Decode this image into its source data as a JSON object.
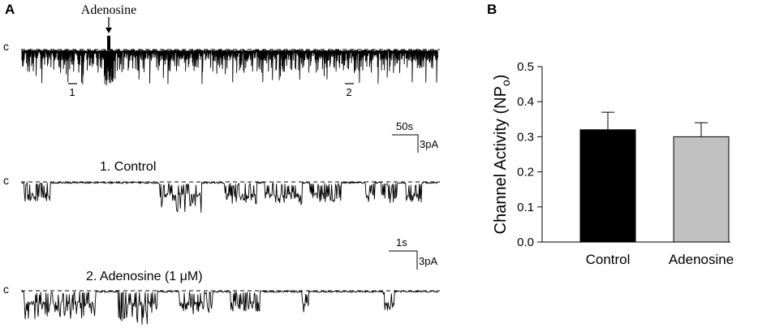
{
  "panel_a": {
    "letter": "A",
    "drug_marker": "Adenosine",
    "closed_label": "c",
    "segment_labels": [
      "1",
      "2"
    ],
    "scalebar_top": {
      "time": "50s",
      "current": "3pA"
    },
    "scalebar_bottom": {
      "time": "1s",
      "current": "3pA"
    },
    "trace_titles": [
      "1. Control",
      "2. Adenosine (1 μM)"
    ]
  },
  "panel_b": {
    "letter": "B"
  },
  "chart_data": {
    "type": "bar",
    "categories": [
      "Control",
      "Adenosine"
    ],
    "values": [
      0.32,
      0.3
    ],
    "errors": [
      0.05,
      0.04
    ],
    "colors": [
      "#000000",
      "#c0c0c0"
    ],
    "ylabel": "Channel Activity (NPo)",
    "ylabel_parts": {
      "main": "Channel Activity (NP",
      "sub": "o",
      "close": ")"
    },
    "xlabel": "",
    "ylim": [
      0.0,
      0.5
    ],
    "yticks": [
      "0.0",
      "0.1",
      "0.2",
      "0.3",
      "0.4",
      "0.5"
    ],
    "grid": false
  }
}
